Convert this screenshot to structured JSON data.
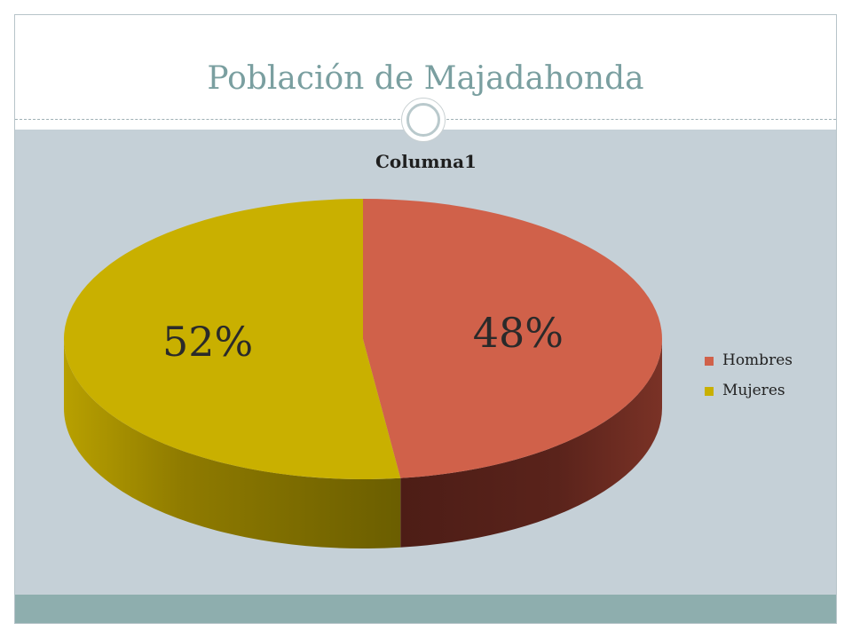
{
  "slide": {
    "title": "Población de Majadahonda"
  },
  "chart_data": {
    "type": "pie",
    "title": "Columna1",
    "categories": [
      "Hombres",
      "Mujeres"
    ],
    "values": [
      48,
      52
    ],
    "labels": [
      "48%",
      "52%"
    ],
    "colors": [
      "#d0614a",
      "#c9b000"
    ],
    "side_colors": [
      "#6b2a1f",
      "#7a6b00"
    ],
    "legend_position": "right",
    "three_d": true
  }
}
